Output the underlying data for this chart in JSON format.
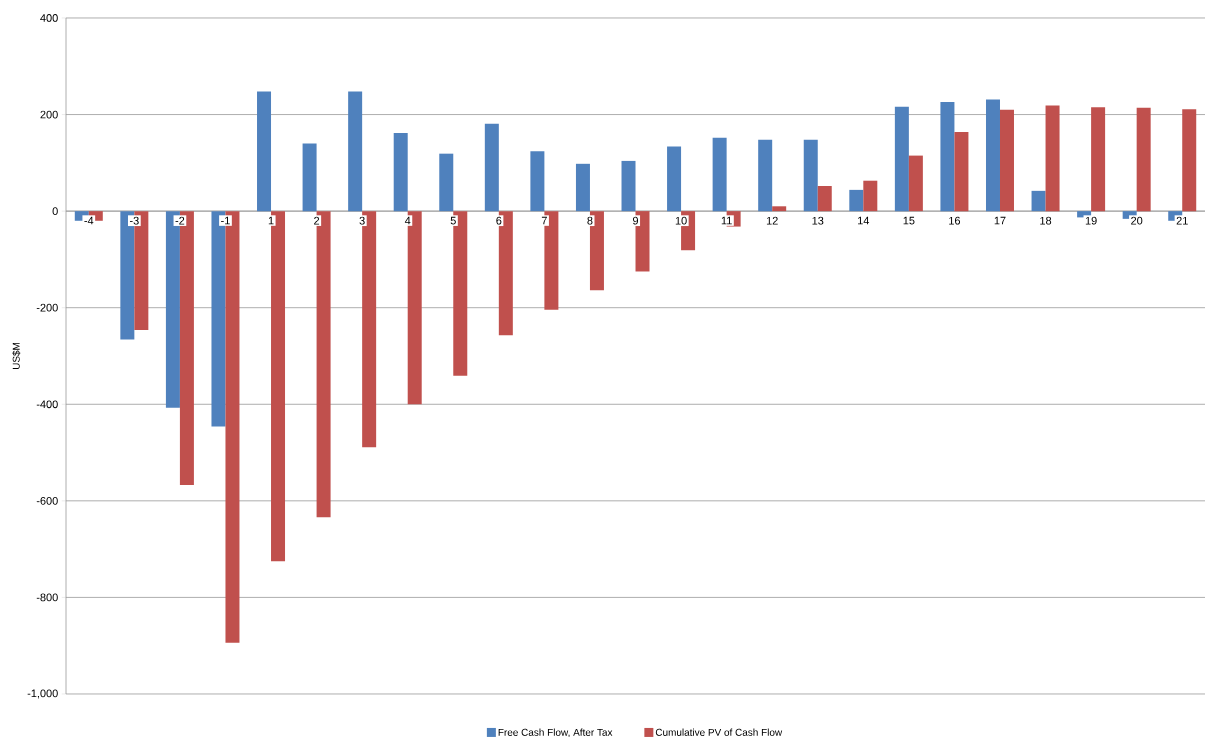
{
  "chart_data": {
    "type": "bar",
    "ylabel": "US$M",
    "categories": [
      "-4",
      "-3",
      "-2",
      "-1",
      "1",
      "2",
      "3",
      "4",
      "5",
      "6",
      "7",
      "8",
      "9",
      "10",
      "11",
      "12",
      "13",
      "14",
      "15",
      "16",
      "17",
      "18",
      "19",
      "20",
      "21"
    ],
    "series": [
      {
        "name": "Free Cash Flow, After Tax",
        "color": "#4f81bd",
        "values": [
          -20,
          -266,
          -407,
          -446,
          248,
          140,
          248,
          162,
          119,
          181,
          124,
          98,
          104,
          134,
          152,
          148,
          148,
          44,
          216,
          226,
          231,
          42,
          -13,
          -16,
          -20
        ]
      },
      {
        "name": "Cumulative PV of Cash Flow",
        "color": "#c0504d",
        "values": [
          -20,
          -246,
          -567,
          -894,
          -725,
          -634,
          -489,
          -400,
          -341,
          -257,
          -204,
          -164,
          -125,
          -81,
          -32,
          10,
          52,
          63,
          115,
          164,
          210,
          219,
          215,
          214,
          211
        ]
      }
    ],
    "ylim": [
      -1000,
      400
    ],
    "yticks": [
      {
        "value": -1000,
        "label": "-1,000"
      },
      -800,
      -600,
      -400,
      -200,
      0,
      200,
      400
    ],
    "grid": "y",
    "legend": "bottom"
  }
}
